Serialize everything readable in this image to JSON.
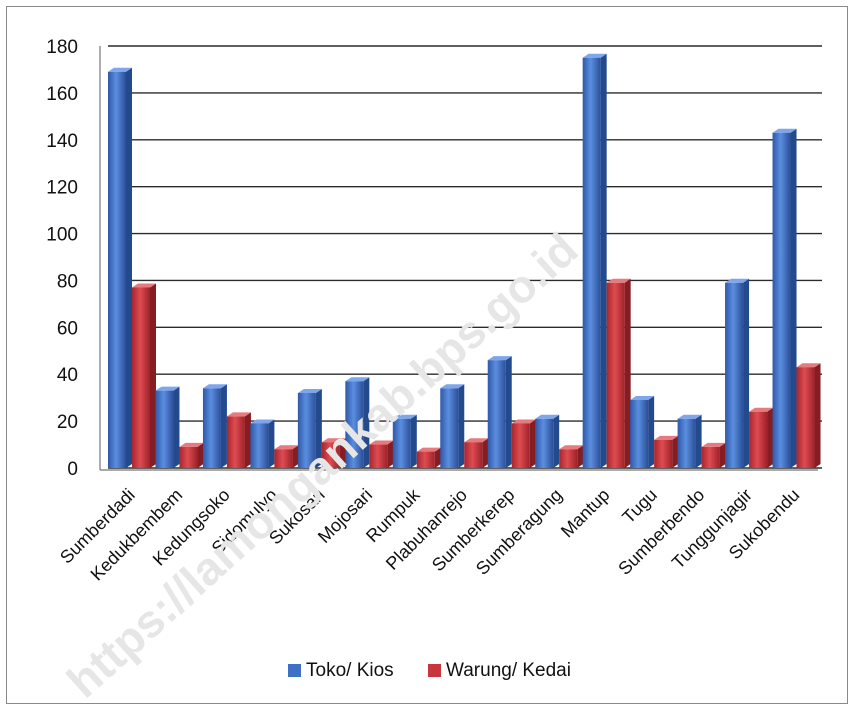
{
  "chart_data": {
    "type": "bar",
    "title": "",
    "xlabel": "",
    "ylabel": "",
    "ylim": [
      0,
      180
    ],
    "yticks": [
      0,
      20,
      40,
      60,
      80,
      100,
      120,
      140,
      160,
      180
    ],
    "grid": true,
    "legend_position": "bottom",
    "categories": [
      "Sumberdadi",
      "Kedukbembem",
      "Kedungsoko",
      "Sidomulyo",
      "Sukosari",
      "Mojosari",
      "Rumpuk",
      "Plabuhanrejo",
      "Sumberkerep",
      "Sumberagung",
      "Mantup",
      "Tugu",
      "Sumberbendo",
      "Tunggunjagir",
      "Sukobendu"
    ],
    "series": [
      {
        "name": "Toko/ Kios",
        "color": "#3f6fc6",
        "values": [
          169,
          33,
          34,
          19,
          32,
          37,
          21,
          34,
          46,
          21,
          175,
          29,
          21,
          79,
          143
        ]
      },
      {
        "name": "Warung/ Kedai",
        "color": "#c8353c",
        "values": [
          77,
          9,
          22,
          8,
          11,
          10,
          7,
          11,
          19,
          8,
          79,
          12,
          9,
          24,
          43
        ]
      }
    ]
  },
  "watermark": "https://lamongankab.bps.go.id"
}
